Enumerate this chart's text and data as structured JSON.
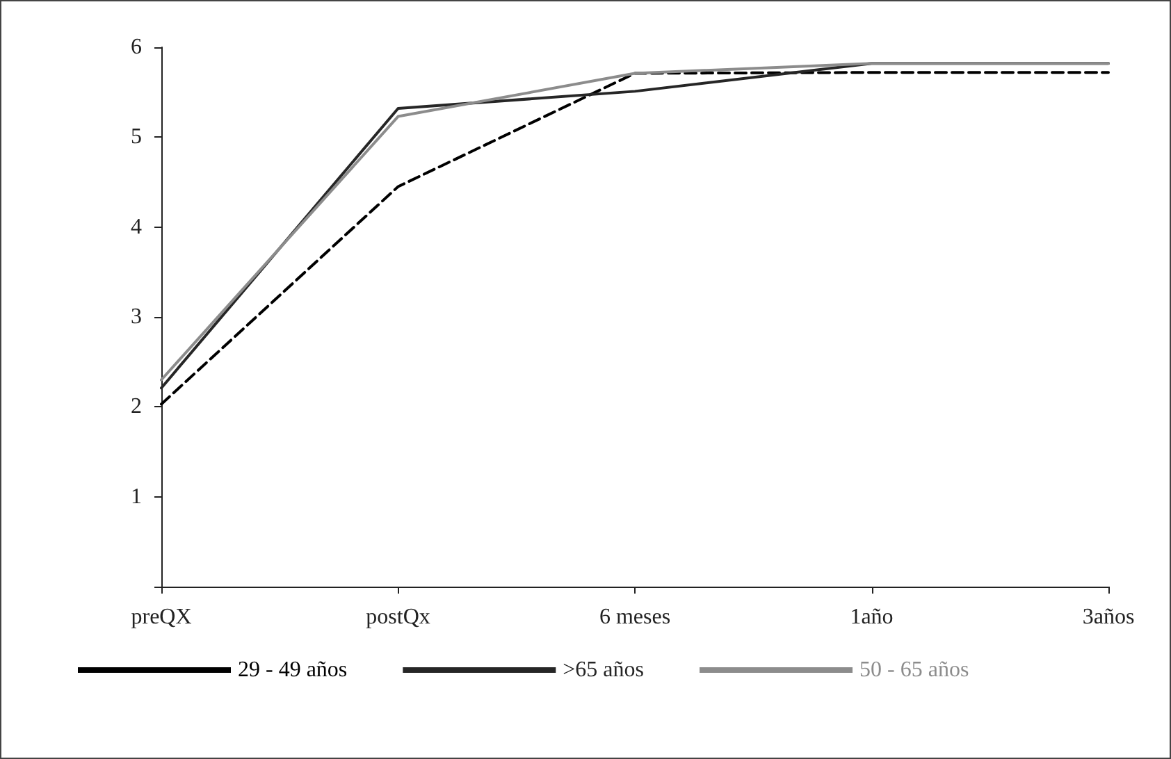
{
  "chart_data": {
    "type": "line",
    "categories": [
      "preQX",
      "postQx",
      "6 meses",
      "1año",
      "3años"
    ],
    "series": [
      {
        "name": "29 - 49 años",
        "color": "#000000",
        "line_style": "dashed",
        "values": [
          2.03,
          4.45,
          5.71,
          5.72,
          5.72
        ]
      },
      {
        "name": ">65 años",
        "color": "#262626",
        "line_style": "solid",
        "values": [
          2.21,
          5.32,
          5.51,
          5.82,
          5.82
        ]
      },
      {
        "name": "50 - 65 años",
        "color": "#8c8c8c",
        "line_style": "solid",
        "values": [
          2.3,
          5.23,
          5.71,
          5.82,
          5.82
        ]
      }
    ],
    "ylim": [
      0,
      6
    ],
    "yticks": [
      {
        "value": 0,
        "label": null
      },
      1,
      2,
      3,
      4,
      5,
      6
    ],
    "grid": false,
    "legend": "bottom",
    "marker": "none"
  }
}
